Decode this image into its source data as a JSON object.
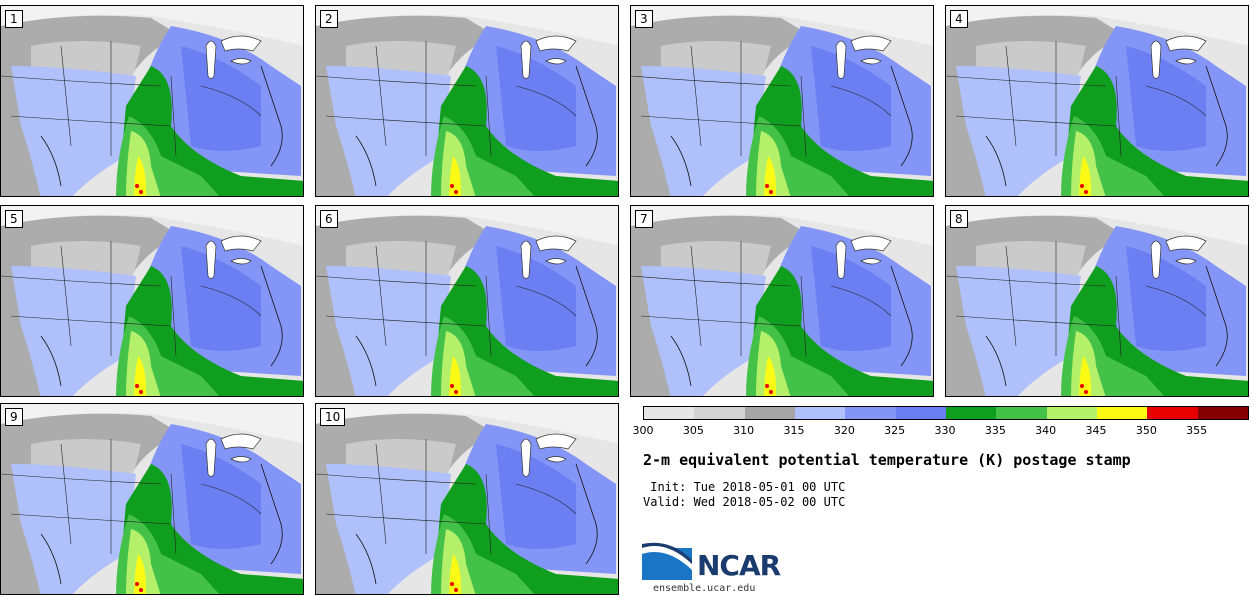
{
  "figure": {
    "title": "2-m equivalent potential temperature (K) postage stamp",
    "init": " Init: Tue 2018-05-01 00 UTC",
    "valid": "Valid: Wed 2018-05-02 00 UTC",
    "org": "NCAR",
    "site": "ensemble.ucar.edu"
  },
  "panels": [
    "1",
    "2",
    "3",
    "4",
    "5",
    "6",
    "7",
    "8",
    "9",
    "10"
  ],
  "colorbar": {
    "colors": [
      "#e6e6e6",
      "#d2d2d2",
      "#a5a5a5",
      "#afc0fb",
      "#8396f7",
      "#6c7ff2",
      "#109e1e",
      "#44c148",
      "#b5f06b",
      "#fafa14",
      "#e60000",
      "#850000"
    ],
    "labels": [
      "300",
      "305",
      "310",
      "315",
      "320",
      "325",
      "330",
      "335",
      "340",
      "345",
      "350",
      "355"
    ]
  }
}
